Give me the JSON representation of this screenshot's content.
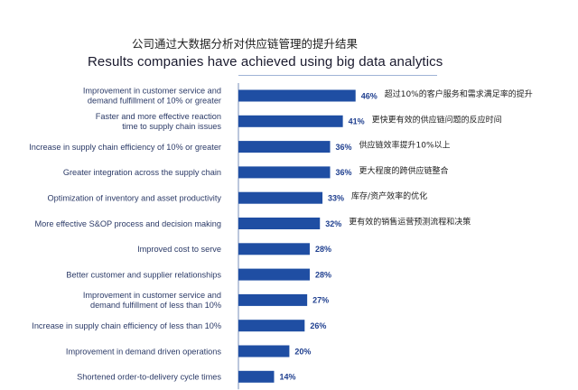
{
  "titles": {
    "chinese": "公司通过大数据分析对供应链管理的提升结果",
    "english": "Results companies have achieved using big data analytics"
  },
  "colors": {
    "bar": "#1f4ea3",
    "value_text": "#1f3f8f",
    "axis": "#7a8fb8"
  },
  "chart_data": {
    "type": "bar",
    "orientation": "horizontal",
    "unit": "%",
    "xlim": [
      0,
      50
    ],
    "grid": false,
    "categories": [
      [
        "Improvement in customer service and",
        "demand fulfillment of 10% or greater"
      ],
      [
        "Faster and more effective reaction",
        "time to supply chain issues"
      ],
      [
        "Increase in supply chain efficiency of 10% or greater"
      ],
      [
        "Greater integration across the supply chain"
      ],
      [
        "Optimization of inventory and asset productivity"
      ],
      [
        "More effective S&OP process and decision making"
      ],
      [
        "Improved cost to serve"
      ],
      [
        "Better customer and supplier relationships"
      ],
      [
        "Improvement in customer service and",
        "demand fulfillment of less than 10%"
      ],
      [
        "Increase in supply chain efficiency of less than 10%"
      ],
      [
        "Improvement in demand driven operations"
      ],
      [
        "Shortened order-to-delivery cycle times"
      ]
    ],
    "values": [
      46,
      41,
      36,
      36,
      33,
      32,
      28,
      28,
      27,
      26,
      20,
      14
    ],
    "value_labels": [
      "46%",
      "41%",
      "36%",
      "36%",
      "33%",
      "32%",
      "28%",
      "28%",
      "27%",
      "26%",
      "20%",
      "14%"
    ],
    "annotations_cn": [
      "超过10%的客户服务和需求满足率的提升",
      "更快更有效的供应链问题的反应时间",
      "供应链效率提升10%以上",
      "更大程度的跨供应链整合",
      "库存/资产效率的优化",
      "更有效的销售运营预测流程和决策",
      "",
      "",
      "",
      "",
      "",
      ""
    ]
  }
}
